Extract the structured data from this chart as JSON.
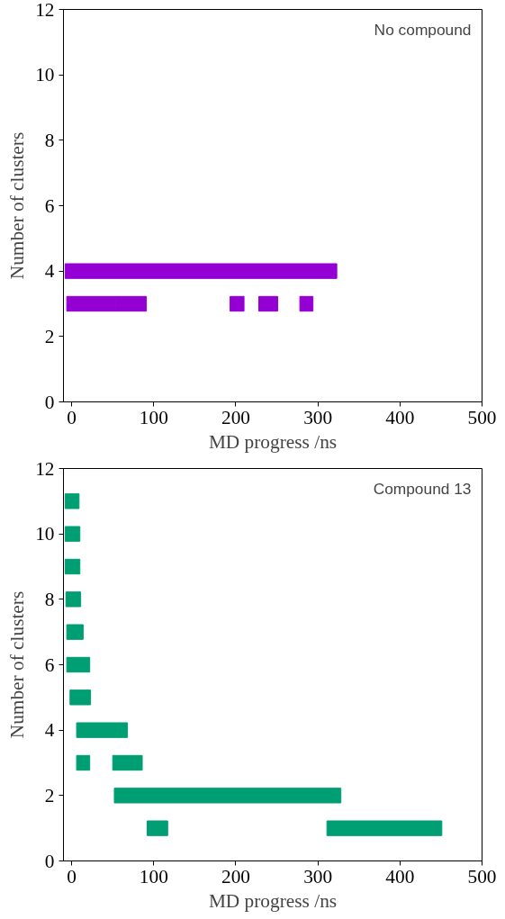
{
  "chart_data": [
    {
      "type": "bar",
      "orientation": "horizontal",
      "xlabel": "MD progress /ns",
      "ylabel": "Number of clusters",
      "annotations": [
        "No compound"
      ],
      "series": [
        {
          "color": "#9400d3",
          "x": [
            4,
            3
          ],
          "base": [
            -8,
            -6
          ],
          "values": [
            331,
            60
          ]
        },
        {
          "color": "#9400d3",
          "x": [
            3
          ],
          "base": [
            54
          ],
          "values": [
            37
          ]
        },
        {
          "color": "#9400d3",
          "x": [
            3
          ],
          "base": [
            193
          ],
          "values": [
            17
          ]
        },
        {
          "color": "#9400d3",
          "x": [
            3
          ],
          "base": [
            228
          ],
          "values": [
            23
          ]
        },
        {
          "color": "#9400d3",
          "x": [
            3
          ],
          "base": [
            278
          ],
          "values": [
            16
          ]
        }
      ],
      "xlim": [
        -10,
        500
      ],
      "xticks": [
        0,
        100,
        200,
        300,
        400,
        500
      ],
      "ylim": [
        0,
        12
      ],
      "yticks": [
        0,
        2,
        4,
        6,
        8,
        10,
        12
      ],
      "grid": false
    },
    {
      "type": "bar",
      "orientation": "horizontal",
      "xlabel": "MD progress /ns",
      "ylabel": "Number of clusters",
      "annotations": [
        "Compound 13"
      ],
      "series": [
        {
          "color": "#009e73",
          "x": [
            11,
            10,
            9,
            8,
            7,
            6,
            5,
            4,
            3,
            2,
            1
          ],
          "base": [
            -8,
            -8,
            -8,
            -7,
            -6,
            -6,
            -2,
            6,
            6,
            52,
            92
          ],
          "values": [
            17,
            18,
            18,
            18,
            20,
            28,
            25,
            62,
            16,
            276,
            25
          ]
        },
        {
          "color": "#009e73",
          "x": [
            3,
            1
          ],
          "base": [
            50,
            311
          ],
          "values": [
            36,
            140
          ]
        }
      ],
      "xlim": [
        -10,
        500
      ],
      "xticks": [
        0,
        100,
        200,
        300,
        400,
        500
      ],
      "ylim": [
        0,
        12
      ],
      "yticks": [
        0,
        2,
        4,
        6,
        8,
        10,
        12
      ],
      "grid": false
    }
  ]
}
